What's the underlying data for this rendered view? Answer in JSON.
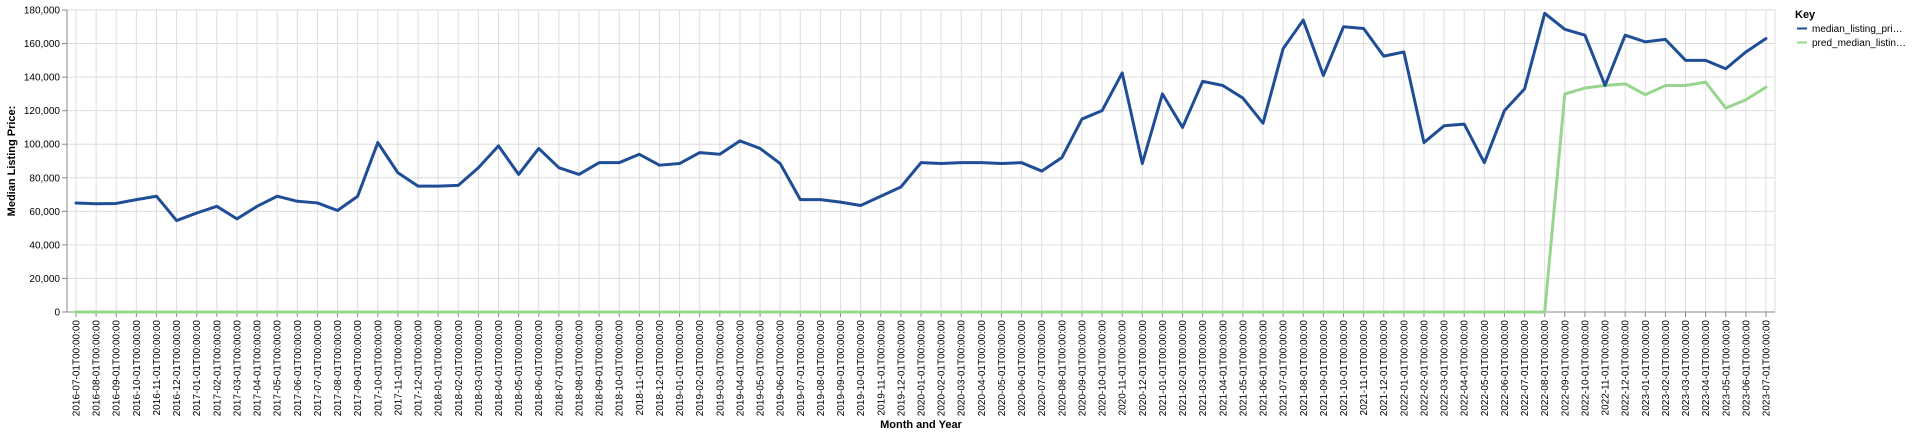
{
  "chart_data": {
    "type": "line",
    "xlabel": "Month and Year",
    "ylabel": "Median Listing Price:",
    "ylim": [
      0,
      180000
    ],
    "yticks": [
      "0",
      "20,000",
      "40,000",
      "60,000",
      "80,000",
      "100,000",
      "120,000",
      "140,000",
      "160,000",
      "180,000"
    ],
    "grid": true,
    "legend": {
      "title": "Key",
      "position": "right"
    },
    "x": [
      "2016-07-01T00:00:00",
      "2016-08-01T00:00:00",
      "2016-09-01T00:00:00",
      "2016-10-01T00:00:00",
      "2016-11-01T00:00:00",
      "2016-12-01T00:00:00",
      "2017-01-01T00:00:00",
      "2017-02-01T00:00:00",
      "2017-03-01T00:00:00",
      "2017-04-01T00:00:00",
      "2017-05-01T00:00:00",
      "2017-06-01T00:00:00",
      "2017-07-01T00:00:00",
      "2017-08-01T00:00:00",
      "2017-09-01T00:00:00",
      "2017-10-01T00:00:00",
      "2017-11-01T00:00:00",
      "2017-12-01T00:00:00",
      "2018-01-01T00:00:00",
      "2018-02-01T00:00:00",
      "2018-03-01T00:00:00",
      "2018-04-01T00:00:00",
      "2018-05-01T00:00:00",
      "2018-06-01T00:00:00",
      "2018-07-01T00:00:00",
      "2018-08-01T00:00:00",
      "2018-09-01T00:00:00",
      "2018-10-01T00:00:00",
      "2018-11-01T00:00:00",
      "2018-12-01T00:00:00",
      "2019-01-01T00:00:00",
      "2019-02-01T00:00:00",
      "2019-03-01T00:00:00",
      "2019-04-01T00:00:00",
      "2019-05-01T00:00:00",
      "2019-06-01T00:00:00",
      "2019-07-01T00:00:00",
      "2019-08-01T00:00:00",
      "2019-09-01T00:00:00",
      "2019-10-01T00:00:00",
      "2019-11-01T00:00:00",
      "2019-12-01T00:00:00",
      "2020-01-01T00:00:00",
      "2020-02-01T00:00:00",
      "2020-03-01T00:00:00",
      "2020-04-01T00:00:00",
      "2020-05-01T00:00:00",
      "2020-06-01T00:00:00",
      "2020-07-01T00:00:00",
      "2020-08-01T00:00:00",
      "2020-09-01T00:00:00",
      "2020-10-01T00:00:00",
      "2020-11-01T00:00:00",
      "2020-12-01T00:00:00",
      "2021-01-01T00:00:00",
      "2021-02-01T00:00:00",
      "2021-03-01T00:00:00",
      "2021-04-01T00:00:00",
      "2021-05-01T00:00:00",
      "2021-06-01T00:00:00",
      "2021-07-01T00:00:00",
      "2021-08-01T00:00:00",
      "2021-09-01T00:00:00",
      "2021-10-01T00:00:00",
      "2021-11-01T00:00:00",
      "2021-12-01T00:00:00",
      "2022-01-01T00:00:00",
      "2022-02-01T00:00:00",
      "2022-03-01T00:00:00",
      "2022-04-01T00:00:00",
      "2022-05-01T00:00:00",
      "2022-06-01T00:00:00",
      "2022-07-01T00:00:00",
      "2022-08-01T00:00:00",
      "2022-09-01T00:00:00",
      "2022-10-01T00:00:00",
      "2022-11-01T00:00:00",
      "2022-12-01T00:00:00",
      "2023-01-01T00:00:00",
      "2023-02-01T00:00:00",
      "2023-03-01T00:00:00",
      "2023-04-01T00:00:00",
      "2023-05-01T00:00:00",
      "2023-06-01T00:00:00",
      "2023-07-01T00:00:00"
    ],
    "series": [
      {
        "name": "median_listing_pri…",
        "color": "#1f4e96",
        "values": [
          65000,
          64500,
          64700,
          67000,
          69000,
          54500,
          59000,
          63000,
          55500,
          63000,
          69000,
          66000,
          65000,
          60500,
          69000,
          101000,
          83000,
          75000,
          75000,
          75500,
          86000,
          99000,
          82000,
          97500,
          86000,
          82000,
          89000,
          89000,
          94000,
          87500,
          88500,
          95000,
          94000,
          102000,
          97500,
          88500,
          67000,
          67000,
          65500,
          63500,
          69000,
          74500,
          89000,
          88500,
          89000,
          89000,
          88500,
          89000,
          84000,
          92000,
          115000,
          120000,
          142500,
          88500,
          130000,
          110000,
          137500,
          135000,
          127500,
          112500,
          157000,
          174000,
          141000,
          170000,
          169000,
          152500,
          155000,
          101000,
          111000,
          112000,
          89000,
          120000,
          133000,
          178000,
          168500,
          165000,
          135000,
          165000,
          161000,
          162500,
          150000,
          150000,
          145000,
          155000,
          163000
        ]
      },
      {
        "name": "pred_median_listin…",
        "color": "#98d58e",
        "values": [
          0,
          0,
          0,
          0,
          0,
          0,
          0,
          0,
          0,
          0,
          0,
          0,
          0,
          0,
          0,
          0,
          0,
          0,
          0,
          0,
          0,
          0,
          0,
          0,
          0,
          0,
          0,
          0,
          0,
          0,
          0,
          0,
          0,
          0,
          0,
          0,
          0,
          0,
          0,
          0,
          0,
          0,
          0,
          0,
          0,
          0,
          0,
          0,
          0,
          0,
          0,
          0,
          0,
          0,
          0,
          0,
          0,
          0,
          0,
          0,
          0,
          0,
          0,
          0,
          0,
          0,
          0,
          0,
          0,
          0,
          0,
          0,
          0,
          0,
          130000,
          133500,
          135000,
          136000,
          129500,
          135000,
          135000,
          137000,
          121500,
          126500,
          134000
        ]
      }
    ]
  }
}
